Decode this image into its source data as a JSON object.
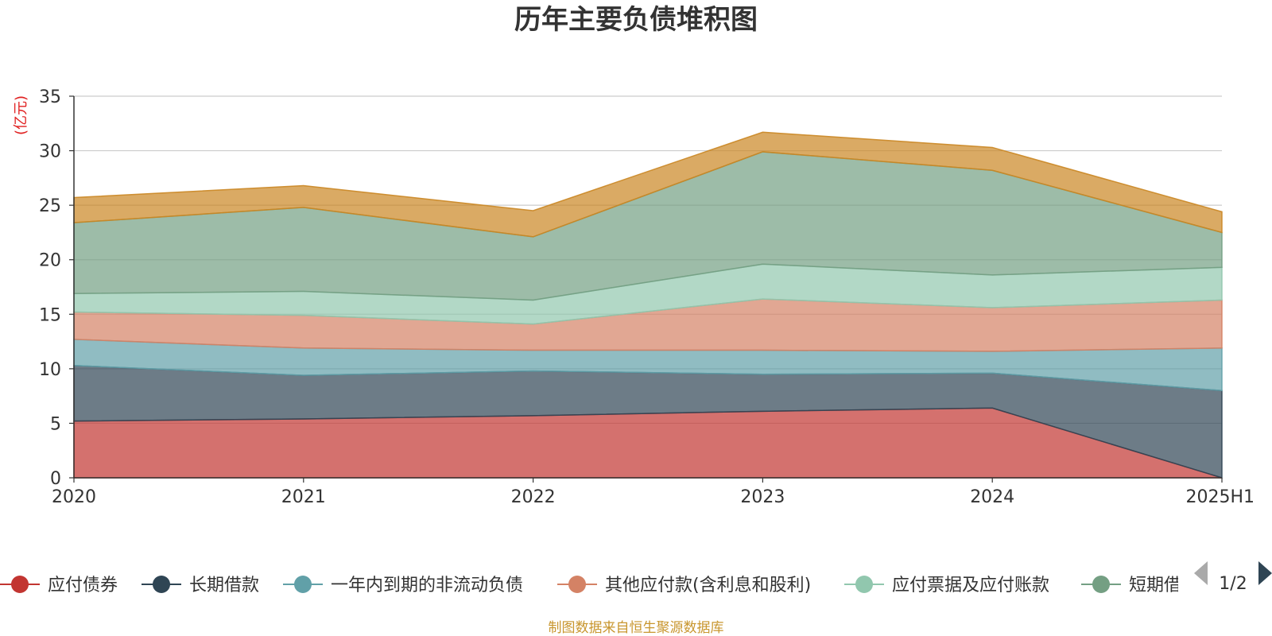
{
  "chart_data": {
    "type": "area",
    "stacked": true,
    "title": "历年主要负债堆积图",
    "ylabel": "(亿元)",
    "xlabel": "",
    "ylim": [
      0,
      35
    ],
    "yticks": [
      0,
      5,
      10,
      15,
      20,
      25,
      30,
      35
    ],
    "grid": true,
    "legend_position": "bottom",
    "categories": [
      "2020",
      "2021",
      "2022",
      "2023",
      "2024",
      "2025H1"
    ],
    "series": [
      {
        "name": "应付债券",
        "color": "#c23531",
        "values": [
          5.2,
          5.4,
          5.7,
          6.1,
          6.4,
          0.0
        ]
      },
      {
        "name": "长期借款",
        "color": "#2f4554",
        "values": [
          5.1,
          4.0,
          4.1,
          3.4,
          3.2,
          8.0
        ]
      },
      {
        "name": "一年内到期的非流动负债",
        "color": "#61a0a8",
        "values": [
          2.4,
          2.5,
          1.9,
          2.2,
          2.0,
          3.9
        ]
      },
      {
        "name": "其他应付款(含利息和股利)",
        "color": "#d48265",
        "values": [
          2.5,
          3.0,
          2.4,
          4.7,
          4.0,
          4.4
        ]
      },
      {
        "name": "应付票据及应付账款",
        "color": "#91c7ae",
        "values": [
          1.7,
          2.2,
          2.2,
          3.2,
          3.0,
          3.0
        ]
      },
      {
        "name": "短期借款",
        "color": "#749f83",
        "values": [
          6.5,
          7.7,
          5.8,
          10.3,
          9.6,
          3.2
        ]
      },
      {
        "name": "",
        "color": "#ca8622",
        "values": [
          2.3,
          2.0,
          2.4,
          1.8,
          2.1,
          1.9
        ]
      }
    ]
  },
  "legend": {
    "items": [
      "应付债券",
      "长期借款",
      "一年内到期的非流动负债",
      "其他应付款(含利息和股利)",
      "应付票据及应付账款",
      "短期借款"
    ],
    "page": "1/2"
  },
  "source_text": "制图数据来自恒生聚源数据库"
}
